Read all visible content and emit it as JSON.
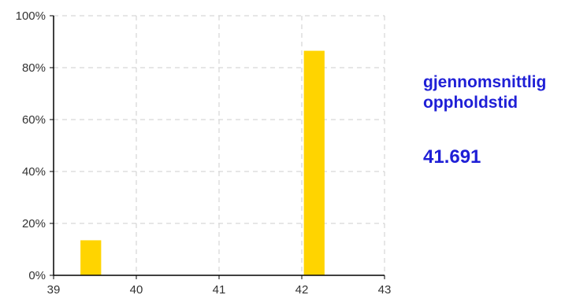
{
  "chart_data": {
    "type": "bar",
    "x": [
      39.45,
      42.15
    ],
    "values": [
      0.135,
      0.865
    ],
    "bar_width": 0.25,
    "xlim": [
      39,
      43
    ],
    "ylim": [
      0,
      1
    ],
    "xticks": [
      39,
      40,
      41,
      42,
      43
    ],
    "yticks": [
      0,
      0.2,
      0.4,
      0.6,
      0.8,
      1.0
    ],
    "ytick_labels": [
      "0%",
      "20%",
      "40%",
      "60%",
      "80%",
      "100%"
    ],
    "grid": true,
    "bar_color": "#ffd400",
    "grid_color": "#cccccc",
    "title": "",
    "xlabel": "",
    "ylabel": ""
  },
  "summary": {
    "title_line1": "gjennomsnittlig",
    "title_line2": "oppholdstid",
    "value": "41.691",
    "color": "#1f1fd6"
  }
}
